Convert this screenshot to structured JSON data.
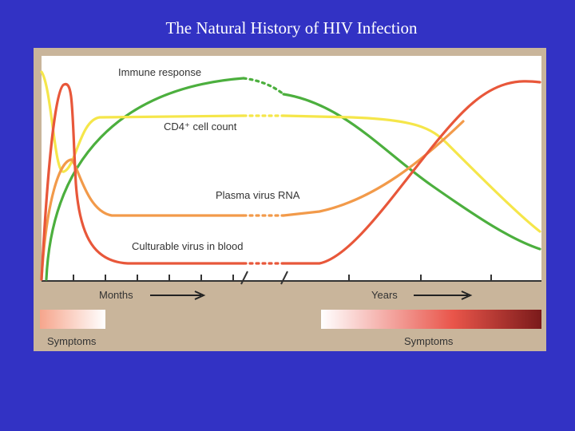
{
  "header": {
    "title": "The Natural History of HIV Infection"
  },
  "diagram": {
    "curves": {
      "immune_response": "Immune response",
      "cd4_count": "CD4⁺ cell count",
      "plasma_rna": "Plasma virus RNA",
      "culturable_virus": "Culturable virus in blood"
    },
    "axis": {
      "months": "Months",
      "years": "Years"
    },
    "symptoms": {
      "early": "Symptoms",
      "late": "Symptoms"
    }
  }
}
